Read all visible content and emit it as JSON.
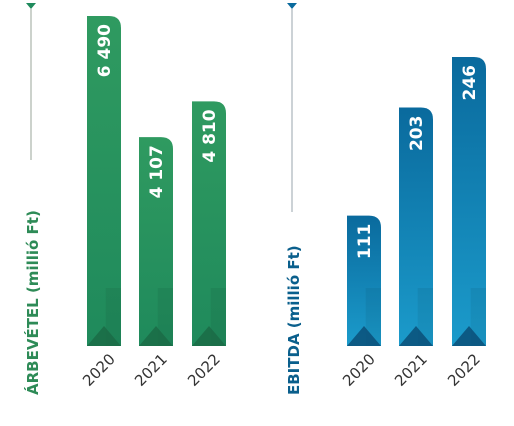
{
  "chart_data": [
    {
      "type": "bar",
      "ylabel": "ÁRBEVÉTEL (millió Ft)",
      "categories": [
        "2020",
        "2021",
        "2022"
      ],
      "values": [
        6490,
        4107,
        4810
      ],
      "value_labels": [
        "6 490",
        "4 107",
        "4 810"
      ],
      "ylim": [
        0,
        6490
      ],
      "grid": false,
      "legend": "none",
      "colors": {
        "bar_top": "#2e9a62",
        "bar_bottom": "#1f7a55",
        "title": "#2e8b57",
        "axis": "#7f8f7f",
        "triangle": "#1b6b45"
      }
    },
    {
      "type": "bar",
      "ylabel": "EBITDA (millió Ft)",
      "categories": [
        "2020",
        "2021",
        "2022"
      ],
      "values": [
        111,
        203,
        246
      ],
      "value_labels": [
        "111",
        "203",
        "246"
      ],
      "ylim": [
        0,
        246
      ],
      "grid": false,
      "legend": "none",
      "colors": {
        "bar_top": "#0b6fa0",
        "bar_bottom": "#1a9ac9",
        "title": "#0a5f8c",
        "axis": "#7f8f9f",
        "triangle": "#0a4f78"
      }
    }
  ]
}
